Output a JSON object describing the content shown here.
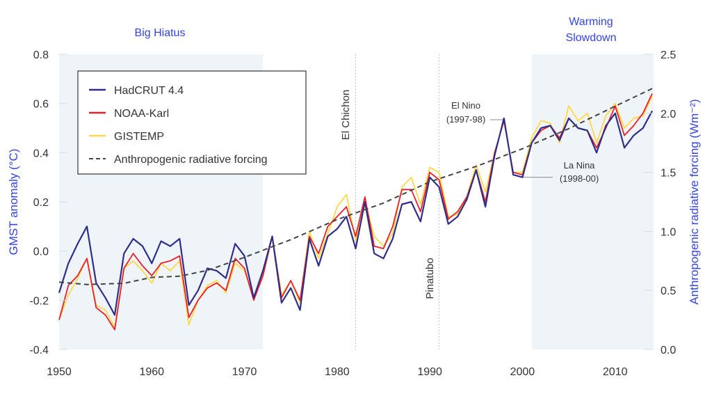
{
  "chart_data": {
    "type": "line",
    "xlabel": "",
    "ylabel": "GMST anomaly (°C)",
    "y2label": "Anthropogenic radiative forcing (Wm⁻²)",
    "xlim": [
      1950,
      2014.2
    ],
    "ylim": [
      -0.4,
      0.8
    ],
    "y2lim": [
      0.0,
      2.5
    ],
    "xticks": [
      "1950",
      "1960",
      "1970",
      "1980",
      "1990",
      "2000",
      "2010"
    ],
    "yticks": [
      "-0.4",
      "-0.2",
      "0.0",
      "0.2",
      "0.4",
      "0.6",
      "0.8"
    ],
    "y2ticks": [
      "0.0",
      "0.5",
      "1.0",
      "1.5",
      "2.0",
      "2.5"
    ],
    "grid": false,
    "legend_placement": "top-left",
    "years_start": 1950,
    "series": [
      {
        "name": "HadCRUT 4.4",
        "color": "#2e2e8a",
        "axis": "left",
        "values": [
          -0.17,
          -0.05,
          0.03,
          0.1,
          -0.13,
          -0.19,
          -0.26,
          -0.01,
          0.05,
          0.02,
          -0.05,
          0.04,
          0.02,
          0.05,
          -0.22,
          -0.16,
          -0.07,
          -0.08,
          -0.11,
          0.03,
          -0.02,
          -0.19,
          -0.08,
          0.06,
          -0.21,
          -0.15,
          -0.24,
          0.05,
          -0.06,
          0.06,
          0.09,
          0.14,
          0.01,
          0.2,
          -0.01,
          -0.03,
          0.05,
          0.19,
          0.2,
          0.12,
          0.3,
          0.26,
          0.11,
          0.14,
          0.21,
          0.33,
          0.18,
          0.39,
          0.54,
          0.31,
          0.3,
          0.44,
          0.5,
          0.51,
          0.45,
          0.54,
          0.5,
          0.49,
          0.4,
          0.51,
          0.56,
          0.42,
          0.47,
          0.5,
          0.57
        ]
      },
      {
        "name": "NOAA-Karl",
        "color": "#e8202a",
        "axis": "left",
        "values": [
          -0.28,
          -0.14,
          -0.1,
          -0.03,
          -0.23,
          -0.26,
          -0.32,
          -0.07,
          -0.01,
          -0.06,
          -0.1,
          -0.05,
          -0.04,
          -0.02,
          -0.27,
          -0.2,
          -0.15,
          -0.13,
          -0.16,
          -0.03,
          -0.07,
          -0.2,
          -0.1,
          0.06,
          -0.19,
          -0.12,
          -0.2,
          0.06,
          -0.01,
          0.1,
          0.14,
          0.18,
          0.06,
          0.22,
          0.02,
          0.01,
          0.1,
          0.25,
          0.25,
          0.16,
          0.32,
          0.29,
          0.13,
          0.16,
          0.22,
          0.33,
          0.2,
          0.4,
          0.53,
          0.32,
          0.31,
          0.44,
          0.49,
          0.51,
          0.46,
          0.54,
          0.5,
          0.49,
          0.42,
          0.5,
          0.59,
          0.47,
          0.51,
          0.56,
          0.64
        ]
      },
      {
        "name": "GISTEMP",
        "color": "#ffd84a",
        "axis": "left",
        "values": [
          -0.28,
          -0.18,
          -0.11,
          -0.03,
          -0.22,
          -0.24,
          -0.31,
          -0.07,
          -0.04,
          -0.08,
          -0.13,
          -0.05,
          -0.08,
          -0.04,
          -0.3,
          -0.2,
          -0.14,
          -0.12,
          -0.17,
          -0.05,
          -0.08,
          -0.19,
          -0.09,
          0.06,
          -0.18,
          -0.12,
          -0.21,
          0.08,
          -0.03,
          0.07,
          0.18,
          0.23,
          0.04,
          0.2,
          0.06,
          0.02,
          0.07,
          0.26,
          0.3,
          0.19,
          0.34,
          0.32,
          0.14,
          0.15,
          0.22,
          0.35,
          0.24,
          0.4,
          0.53,
          0.32,
          0.32,
          0.46,
          0.53,
          0.52,
          0.44,
          0.59,
          0.53,
          0.56,
          0.44,
          0.55,
          0.6,
          0.5,
          0.54,
          0.55,
          0.63
        ]
      },
      {
        "name": "Anthropogenic radiative forcing",
        "color": "#444444",
        "axis": "right",
        "dashed": true,
        "x": [
          1950,
          1953,
          1957,
          1960,
          1963,
          1966,
          1970,
          1975,
          1980,
          1985,
          1990,
          1995,
          2000,
          2005,
          2010,
          2014
        ],
        "values": [
          0.57,
          0.55,
          0.56,
          0.61,
          0.62,
          0.67,
          0.78,
          0.93,
          1.1,
          1.24,
          1.42,
          1.55,
          1.7,
          1.87,
          2.06,
          2.21
        ]
      }
    ],
    "shaded_periods": [
      {
        "label": "Big Hiatus",
        "start": 1950,
        "end": 1972
      },
      {
        "label": "Warming Slowdown",
        "label_lines": [
          "Warming",
          "Slowdown"
        ],
        "start": 2001,
        "end": 2014.2
      }
    ],
    "events": [
      {
        "label": "El Chichon",
        "year": 1982
      },
      {
        "label": "Pinatubo",
        "year": 1991
      }
    ],
    "annotations": [
      {
        "lines": [
          "El Nino",
          "(1997-98)"
        ],
        "year": 1998
      },
      {
        "lines": [
          "La Nina",
          "(1998-00)"
        ],
        "year": 2000
      }
    ],
    "colors": {
      "shade": "#eef4f8",
      "title_blue": "#3344e0",
      "axis_label_blue": "#3344e0"
    }
  }
}
